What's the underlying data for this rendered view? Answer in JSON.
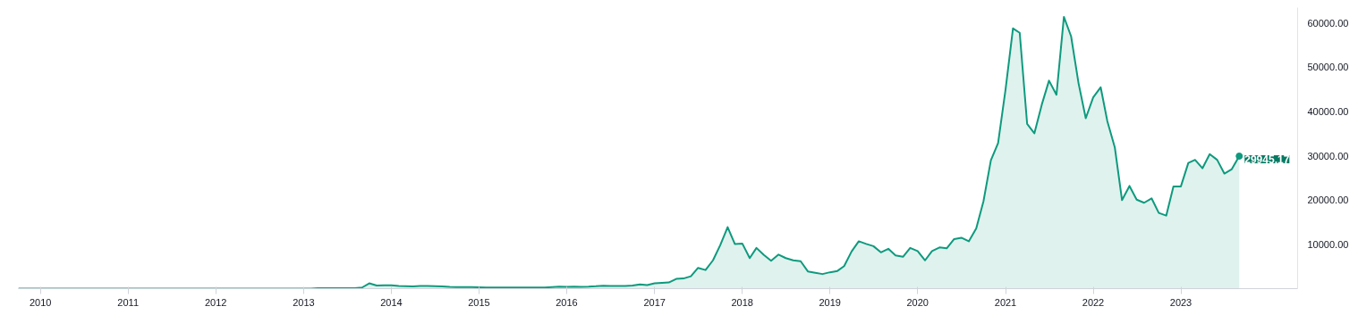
{
  "chart_data": {
    "type": "area",
    "x": [
      "2009-10",
      "2009-11",
      "2009-12",
      "2010-01",
      "2010-02",
      "2010-03",
      "2010-04",
      "2010-05",
      "2010-06",
      "2010-07",
      "2010-08",
      "2010-09",
      "2010-10",
      "2010-11",
      "2010-12",
      "2011-01",
      "2011-02",
      "2011-03",
      "2011-04",
      "2011-05",
      "2011-06",
      "2011-07",
      "2011-08",
      "2011-09",
      "2011-10",
      "2011-11",
      "2011-12",
      "2012-01",
      "2012-02",
      "2012-03",
      "2012-04",
      "2012-05",
      "2012-06",
      "2012-07",
      "2012-08",
      "2012-09",
      "2012-10",
      "2012-11",
      "2012-12",
      "2013-01",
      "2013-02",
      "2013-03",
      "2013-04",
      "2013-05",
      "2013-06",
      "2013-07",
      "2013-08",
      "2013-09",
      "2013-10",
      "2013-11",
      "2013-12",
      "2014-01",
      "2014-02",
      "2014-03",
      "2014-04",
      "2014-05",
      "2014-06",
      "2014-07",
      "2014-08",
      "2014-09",
      "2014-10",
      "2014-11",
      "2014-12",
      "2015-01",
      "2015-02",
      "2015-03",
      "2015-04",
      "2015-05",
      "2015-06",
      "2015-07",
      "2015-08",
      "2015-09",
      "2015-10",
      "2015-11",
      "2015-12",
      "2016-01",
      "2016-02",
      "2016-03",
      "2016-04",
      "2016-05",
      "2016-06",
      "2016-07",
      "2016-08",
      "2016-09",
      "2016-10",
      "2016-11",
      "2016-12",
      "2017-01",
      "2017-02",
      "2017-03",
      "2017-04",
      "2017-05",
      "2017-06",
      "2017-07",
      "2017-08",
      "2017-09",
      "2017-10",
      "2017-11",
      "2017-12",
      "2018-01",
      "2018-02",
      "2018-03",
      "2018-04",
      "2018-05",
      "2018-06",
      "2018-07",
      "2018-08",
      "2018-09",
      "2018-10",
      "2018-11",
      "2018-12",
      "2019-01",
      "2019-02",
      "2019-03",
      "2019-04",
      "2019-05",
      "2019-06",
      "2019-07",
      "2019-08",
      "2019-09",
      "2019-10",
      "2019-11",
      "2019-12",
      "2020-01",
      "2020-02",
      "2020-03",
      "2020-04",
      "2020-05",
      "2020-06",
      "2020-07",
      "2020-08",
      "2020-09",
      "2020-10",
      "2020-11",
      "2020-12",
      "2021-01",
      "2021-02",
      "2021-03",
      "2021-04",
      "2021-05",
      "2021-06",
      "2021-07",
      "2021-08",
      "2021-09",
      "2021-10",
      "2021-11",
      "2021-12",
      "2022-01",
      "2022-02",
      "2022-03",
      "2022-04",
      "2022-05",
      "2022-06",
      "2022-07",
      "2022-08",
      "2022-09",
      "2022-10",
      "2022-11",
      "2022-12",
      "2023-01",
      "2023-02",
      "2023-03",
      "2023-04",
      "2023-05",
      "2023-06",
      "2023-07",
      "2023-08",
      "2023-09"
    ],
    "values": [
      0,
      0,
      0,
      0,
      0,
      0,
      0,
      0,
      0,
      0,
      0,
      0,
      0,
      0,
      0,
      0,
      0,
      0,
      0,
      0,
      0,
      0,
      0,
      0,
      0,
      0,
      0,
      0,
      0,
      0,
      0,
      0,
      0,
      0,
      0,
      0,
      0,
      0,
      0,
      0,
      0,
      100,
      100,
      100,
      100,
      100,
      100,
      250,
      1200,
      700,
      750,
      750,
      600,
      550,
      500,
      600,
      600,
      550,
      500,
      400,
      350,
      370,
      350,
      300,
      250,
      250,
      230,
      230,
      250,
      260,
      230,
      240,
      270,
      370,
      430,
      400,
      430,
      420,
      450,
      530,
      650,
      620,
      580,
      600,
      700,
      950,
      800,
      1200,
      1300,
      1400,
      2200,
      2300,
      2800,
      4700,
      4200,
      6400,
      9800,
      13900,
      10100,
      10200,
      6900,
      9200,
      7600,
      6300,
      7700,
      6900,
      6400,
      6200,
      3900,
      3600,
      3300,
      3700,
      4000,
      5100,
      8400,
      10700,
      10100,
      9600,
      8200,
      9000,
      7500,
      7200,
      9200,
      8500,
      6400,
      8500,
      9300,
      9100,
      11200,
      11500,
      10700,
      13600,
      19700,
      29000,
      32900,
      45000,
      58800,
      57800,
      37200,
      35100,
      41600,
      47000,
      43800,
      61400,
      57000,
      46400,
      38500,
      43200,
      45500,
      37800,
      31900,
      20000,
      23200,
      20100,
      19400,
      20400,
      17100,
      16500,
      23100,
      23100,
      28400,
      29100,
      27200,
      30400,
      29100,
      26000,
      27000,
      29945.17
    ],
    "color": "#0e9a7e",
    "xlim": [
      "2009-10",
      "2024-05"
    ],
    "xticks": [
      {
        "value": "2010-01",
        "label": "2010"
      },
      {
        "value": "2011-01",
        "label": "2011"
      },
      {
        "value": "2012-01",
        "label": "2012"
      },
      {
        "value": "2013-01",
        "label": "2013"
      },
      {
        "value": "2014-01",
        "label": "2014"
      },
      {
        "value": "2015-01",
        "label": "2015"
      },
      {
        "value": "2016-01",
        "label": "2016"
      },
      {
        "value": "2017-01",
        "label": "2017"
      },
      {
        "value": "2018-01",
        "label": "2018"
      },
      {
        "value": "2019-01",
        "label": "2019"
      },
      {
        "value": "2020-01",
        "label": "2020"
      },
      {
        "value": "2021-01",
        "label": "2021"
      },
      {
        "value": "2022-01",
        "label": "2022"
      },
      {
        "value": "2023-01",
        "label": "2023"
      }
    ],
    "ylim": [
      0,
      63500
    ],
    "yticks": [
      {
        "value": 10000,
        "label": "10000.00"
      },
      {
        "value": 20000,
        "label": "20000.00"
      },
      {
        "value": 30000,
        "label": "30000.00"
      },
      {
        "value": 40000,
        "label": "40000.00"
      },
      {
        "value": 50000,
        "label": "50000.00"
      },
      {
        "value": 60000,
        "label": "60000.00"
      }
    ],
    "annotations": [
      {
        "text": "29945.17",
        "x": "2023-09",
        "y": 29945.17
      }
    ],
    "grid": false
  }
}
